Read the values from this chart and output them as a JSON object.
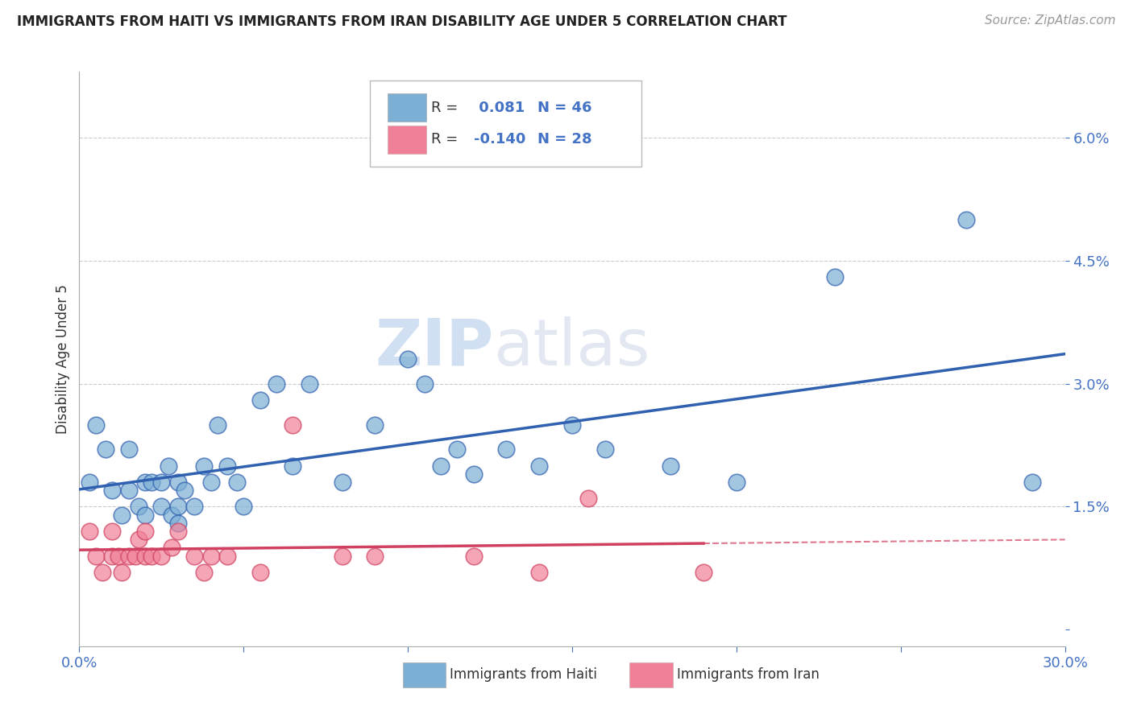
{
  "title": "IMMIGRANTS FROM HAITI VS IMMIGRANTS FROM IRAN DISABILITY AGE UNDER 5 CORRELATION CHART",
  "source": "Source: ZipAtlas.com",
  "ylabel": "Disability Age Under 5",
  "xlim": [
    0.0,
    0.3
  ],
  "ylim": [
    -0.002,
    0.068
  ],
  "xticks": [
    0.0,
    0.05,
    0.1,
    0.15,
    0.2,
    0.25,
    0.3
  ],
  "xticklabels": [
    "0.0%",
    "",
    "",
    "",
    "",
    "",
    "30.0%"
  ],
  "yticks": [
    0.0,
    0.015,
    0.03,
    0.045,
    0.06
  ],
  "yticklabels": [
    "",
    "1.5%",
    "3.0%",
    "4.5%",
    "6.0%"
  ],
  "haiti_color": "#7bafd4",
  "iran_color": "#f08098",
  "haiti_line_color": "#3060b0",
  "iran_line_color": "#d04060",
  "R_haiti": 0.081,
  "N_haiti": 46,
  "R_iran": -0.14,
  "N_iran": 28,
  "haiti_scatter_x": [
    0.003,
    0.005,
    0.008,
    0.01,
    0.013,
    0.015,
    0.015,
    0.018,
    0.02,
    0.02,
    0.022,
    0.025,
    0.025,
    0.027,
    0.028,
    0.03,
    0.03,
    0.03,
    0.032,
    0.035,
    0.038,
    0.04,
    0.042,
    0.045,
    0.048,
    0.05,
    0.055,
    0.06,
    0.065,
    0.07,
    0.08,
    0.09,
    0.1,
    0.105,
    0.11,
    0.115,
    0.12,
    0.13,
    0.14,
    0.15,
    0.16,
    0.18,
    0.2,
    0.23,
    0.27,
    0.29
  ],
  "haiti_scatter_y": [
    0.018,
    0.025,
    0.022,
    0.017,
    0.014,
    0.022,
    0.017,
    0.015,
    0.018,
    0.014,
    0.018,
    0.018,
    0.015,
    0.02,
    0.014,
    0.018,
    0.015,
    0.013,
    0.017,
    0.015,
    0.02,
    0.018,
    0.025,
    0.02,
    0.018,
    0.015,
    0.028,
    0.03,
    0.02,
    0.03,
    0.018,
    0.025,
    0.033,
    0.03,
    0.02,
    0.022,
    0.019,
    0.022,
    0.02,
    0.025,
    0.022,
    0.02,
    0.018,
    0.043,
    0.05,
    0.018
  ],
  "iran_scatter_x": [
    0.003,
    0.005,
    0.007,
    0.01,
    0.01,
    0.012,
    0.013,
    0.015,
    0.017,
    0.018,
    0.02,
    0.02,
    0.022,
    0.025,
    0.028,
    0.03,
    0.035,
    0.038,
    0.04,
    0.045,
    0.055,
    0.065,
    0.08,
    0.09,
    0.12,
    0.14,
    0.155,
    0.19
  ],
  "iran_scatter_y": [
    0.012,
    0.009,
    0.007,
    0.012,
    0.009,
    0.009,
    0.007,
    0.009,
    0.009,
    0.011,
    0.012,
    0.009,
    0.009,
    0.009,
    0.01,
    0.012,
    0.009,
    0.007,
    0.009,
    0.009,
    0.007,
    0.025,
    0.009,
    0.009,
    0.009,
    0.007,
    0.016,
    0.007
  ],
  "watermark_zip": "ZIP",
  "watermark_atlas": "atlas",
  "background_color": "#ffffff",
  "grid_color": "#cccccc",
  "legend_R_color": "#4472c4",
  "legend_text_color": "#333333"
}
